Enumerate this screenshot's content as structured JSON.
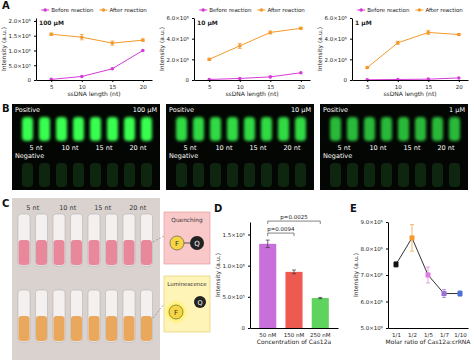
{
  "panels": [
    "A",
    "B",
    "C",
    "D",
    "E"
  ],
  "chart_data": [
    {
      "type": "line",
      "title": "100 μM",
      "x_label": "ssDNA length (nt)",
      "y_label": "Intensity (a.u.)",
      "x": [
        5,
        10,
        15,
        20
      ],
      "xlim": [
        2.5,
        21.5
      ],
      "xticks": [
        5,
        10,
        15,
        20
      ],
      "ylim": [
        0,
        2100000
      ],
      "yticks": [
        0,
        {
          "value": 500000,
          "label": "5.0×10⁵"
        },
        {
          "value": 1000000,
          "label": "1.0×10⁶"
        },
        {
          "value": 1500000,
          "label": "1.5×10⁶"
        },
        {
          "value": 2000000,
          "label": "2.0×10⁶"
        }
      ],
      "legend": "top",
      "marker": "circle",
      "series": [
        {
          "name": "Before reaction",
          "color": "#d63bd6",
          "values": [
            20000,
            120000,
            380000,
            1000000
          ]
        },
        {
          "name": "After reaction",
          "color": "#f39a2b",
          "values": [
            1550000,
            1450000,
            1250000,
            1350000
          ],
          "errors": [
            40000,
            90000,
            70000,
            40000
          ]
        }
      ]
    },
    {
      "type": "line",
      "title": "10 μM",
      "x_label": "ssDNA length (nt)",
      "y_label": "Intensity (a.u.)",
      "x": [
        5,
        10,
        15,
        20
      ],
      "xlim": [
        2.5,
        21.5
      ],
      "xticks": [
        5,
        10,
        15,
        20
      ],
      "ylim": [
        0,
        6000000
      ],
      "yticks": [
        0,
        {
          "value": 2000000,
          "label": "2.0×10⁶"
        },
        {
          "value": 4000000,
          "label": "4.0×10⁶"
        },
        {
          "value": 6000000,
          "label": "6.0×10⁶"
        }
      ],
      "legend": "top",
      "marker": "circle",
      "series": [
        {
          "name": "Before reaction",
          "color": "#d63bd6",
          "values": [
            50000,
            150000,
            300000,
            700000
          ]
        },
        {
          "name": "After reaction",
          "color": "#f39a2b",
          "values": [
            2000000,
            3300000,
            4600000,
            5000000
          ],
          "errors": [
            100000,
            250000,
            150000,
            100000
          ]
        }
      ]
    },
    {
      "type": "line",
      "title": "1 μM",
      "x_label": "ssDNA length (nt)",
      "y_label": "Intensity (a.u.)",
      "x": [
        5,
        10,
        15,
        20
      ],
      "xlim": [
        2.5,
        21.5
      ],
      "xticks": [
        5,
        10,
        15,
        20
      ],
      "ylim": [
        0,
        6000000
      ],
      "yticks": [
        0,
        {
          "value": 2000000,
          "label": "2.0×10⁶"
        },
        {
          "value": 4000000,
          "label": "4.0×10⁶"
        },
        {
          "value": 6000000,
          "label": "6.0×10⁶"
        }
      ],
      "legend": "top",
      "marker": "circle",
      "series": [
        {
          "name": "Before reaction",
          "color": "#d63bd6",
          "values": [
            20000,
            50000,
            80000,
            200000
          ]
        },
        {
          "name": "After reaction",
          "color": "#f39a2b",
          "values": [
            1200000,
            3600000,
            4600000,
            4400000
          ],
          "errors": [
            80000,
            150000,
            200000,
            100000
          ]
        }
      ]
    },
    {
      "type": "bar",
      "x_label": "Concentration of Cas12a",
      "y_label": "Intensity (a.u.)",
      "categories": [
        "50 nM",
        "150 nM",
        "250 nM"
      ],
      "values": [
        1350000,
        900000,
        480000
      ],
      "errors": [
        60000,
        30000,
        10000
      ],
      "colors": [
        "#c86fdc",
        "#ef5a50",
        "#5ed35e"
      ],
      "ylim": [
        0,
        1700000
      ],
      "yticks": [
        0,
        {
          "value": 500000,
          "label": "5.0×10⁵"
        },
        {
          "value": 1000000,
          "label": "1.0×10⁶"
        },
        {
          "value": 1500000,
          "label": "1.5×10⁶"
        }
      ],
      "annotations": [
        "p=0.0094",
        "p=0.0025"
      ]
    },
    {
      "type": "line",
      "x_label": "Molar ratio of Cas12a:crRNA",
      "y_label": "Intensity (a.u.)",
      "categories": [
        "1/1",
        "1/2",
        "1/5",
        "1/7",
        "1/10"
      ],
      "values": [
        7400000,
        8400000,
        7000000,
        6300000,
        6300000
      ],
      "errors": [
        100000,
        500000,
        300000,
        150000,
        100000
      ],
      "color": "#333333",
      "colors": [
        "#111111",
        "#f39a2b",
        "#e07be0",
        "#9a6fd6",
        "#4b6fd9"
      ],
      "marker": "square",
      "ylim": [
        5000000,
        9000000
      ],
      "yticks": [
        {
          "value": 5000000,
          "label": "5.0×10⁶"
        },
        {
          "value": 6000000,
          "label": "6.0×10⁶"
        },
        {
          "value": 7000000,
          "label": "7.0×10⁶"
        },
        {
          "value": 8000000,
          "label": "8.0×10⁶"
        },
        {
          "value": 9000000,
          "label": "9.0×10⁶"
        }
      ]
    }
  ],
  "photos": {
    "B": {
      "groups": [
        {
          "concentration": "100 μM",
          "positive": "Positive",
          "negative": "Negative",
          "lanes": [
            "5 nt",
            "10 nt",
            "15 nt",
            "20 nt"
          ]
        },
        {
          "concentration": "10 μM",
          "positive": "Positive",
          "negative": "Negative",
          "lanes": [
            "5 nt",
            "10 nt",
            "15 nt",
            "20 nt"
          ]
        },
        {
          "concentration": "1 μM",
          "positive": "Positive",
          "negative": "Negative",
          "lanes": [
            "5 nt",
            "10 nt",
            "15 nt",
            "20 nt"
          ]
        }
      ]
    },
    "C": {
      "lanes": [
        "5 nt",
        "10 nt",
        "15 nt",
        "20 nt"
      ],
      "states": [
        "Quenching",
        "Luminescence"
      ],
      "fluorophore": "F",
      "quencher": "Q"
    }
  }
}
